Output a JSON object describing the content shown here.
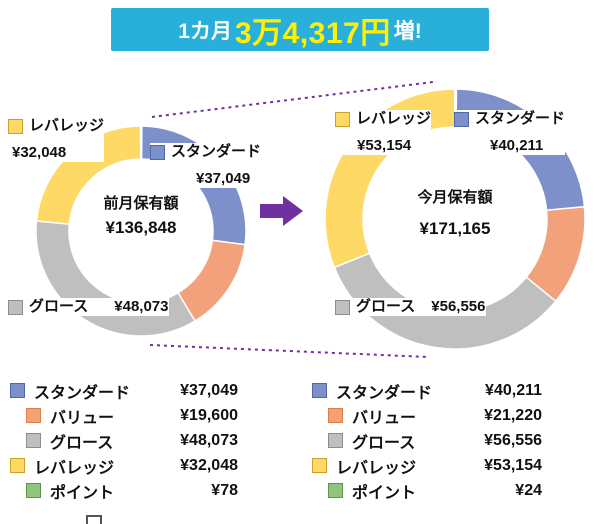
{
  "banner": {
    "prefix": "1カ月",
    "amount": "3万4,317円",
    "suffix": "増!"
  },
  "colors": {
    "banner_bg": "#29B0DA",
    "banner_amount": "#FFF100",
    "banner_text": "#FFFFFF",
    "connector": "#7030A0",
    "arrow": "#7030A0",
    "standard": "#7D90C9",
    "value": "#F2A17B",
    "growth": "#BFBFBF",
    "leverage": "#FFD965",
    "point": "#93C47D"
  },
  "chart_data": [
    {
      "type": "pie",
      "subtype": "donut",
      "title": "前月保有額",
      "total": 136848,
      "total_display": "¥136,848",
      "start_angle_deg": 0,
      "direction": "clockwise",
      "segments": [
        {
          "name": "スタンダード",
          "value": 37049,
          "display": "¥37,049",
          "color": "#7D90C9",
          "border": "#4A69A8"
        },
        {
          "name": "バリュー",
          "value": 19600,
          "display": "¥19,600",
          "color": "#F2A17B",
          "border": "#DD7E45"
        },
        {
          "name": "グロース",
          "value": 48073,
          "display": "¥48,073",
          "color": "#BFBFBF",
          "border": "#8C8C8C"
        },
        {
          "name": "レバレッジ",
          "value": 32048,
          "display": "¥32,048",
          "color": "#FFD965",
          "border": "#C9A227"
        },
        {
          "name": "ポイント",
          "value": 78,
          "display": "¥78",
          "color": "#93C47D",
          "border": "#5F944C"
        }
      ]
    },
    {
      "type": "pie",
      "subtype": "donut",
      "title": "今月保有額",
      "total": 171165,
      "total_display": "¥171,165",
      "start_angle_deg": 0,
      "direction": "clockwise",
      "segments": [
        {
          "name": "スタンダード",
          "value": 40211,
          "display": "¥40,211",
          "color": "#7D90C9",
          "border": "#4A69A8"
        },
        {
          "name": "バリュー",
          "value": 21220,
          "display": "¥21,220",
          "color": "#F2A17B",
          "border": "#DD7E45"
        },
        {
          "name": "グロース",
          "value": 56556,
          "display": "¥56,556",
          "color": "#BFBFBF",
          "border": "#8C8C8C"
        },
        {
          "name": "レバレッジ",
          "value": 53154,
          "display": "¥53,154",
          "color": "#FFD965",
          "border": "#C9A227"
        },
        {
          "name": "ポイント",
          "value": 24,
          "display": "¥24",
          "color": "#93C47D",
          "border": "#5F944C"
        }
      ]
    }
  ]
}
